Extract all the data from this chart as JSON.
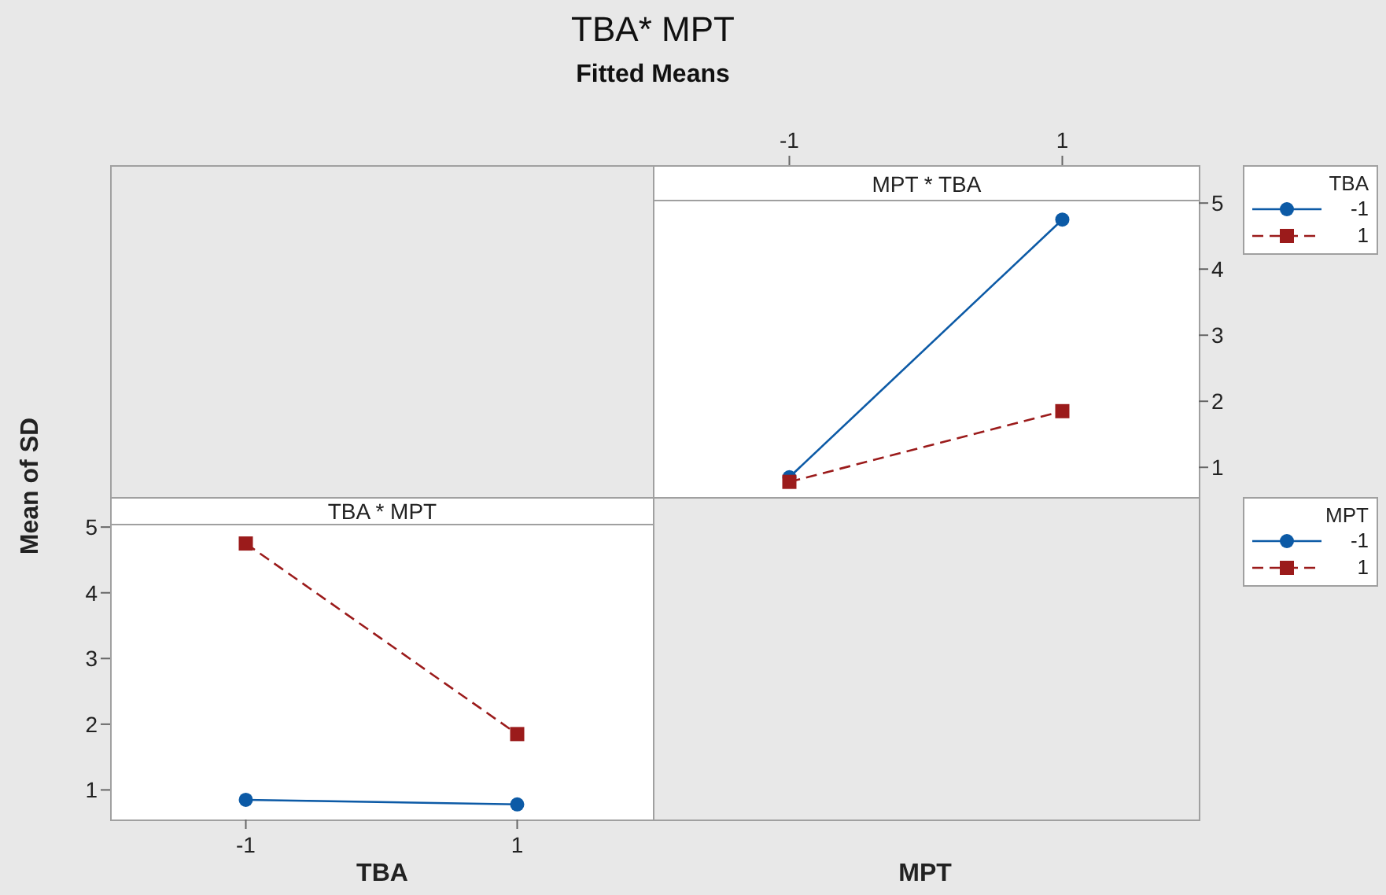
{
  "chart_data": [
    {
      "type": "line",
      "title": "TBA* MPT",
      "subtitle": "Fitted Means",
      "annotations": [
        "MPT * TBA"
      ],
      "xlabel": "MPT",
      "legend_title": "TBA",
      "legend": "right",
      "categories": [
        "-1",
        "1"
      ],
      "ylim": [
        0.55,
        5.05
      ],
      "yticks": [
        1,
        2,
        3,
        4,
        5
      ],
      "series": [
        {
          "name": "-1",
          "color": "#0c5aa6",
          "values": [
            0.85,
            4.75
          ],
          "marker": "circle",
          "line_style": "solid"
        },
        {
          "name": "1",
          "color": "#9b1b1b",
          "values": [
            0.78,
            1.85
          ],
          "marker": "square",
          "line_style": "dashed"
        }
      ]
    },
    {
      "type": "line",
      "annotations": [
        "TBA * MPT"
      ],
      "xlabel": "TBA",
      "ylabel": "Mean of SD",
      "legend_title": "MPT",
      "legend": "right",
      "categories": [
        "-1",
        "1"
      ],
      "ylim": [
        0.55,
        5.05
      ],
      "yticks": [
        1,
        2,
        3,
        4,
        5
      ],
      "series": [
        {
          "name": "-1",
          "color": "#0c5aa6",
          "values": [
            0.85,
            0.78
          ],
          "marker": "circle",
          "line_style": "solid"
        },
        {
          "name": "1",
          "color": "#9b1b1b",
          "values": [
            4.75,
            1.85
          ],
          "marker": "square",
          "line_style": "dashed"
        }
      ]
    }
  ]
}
